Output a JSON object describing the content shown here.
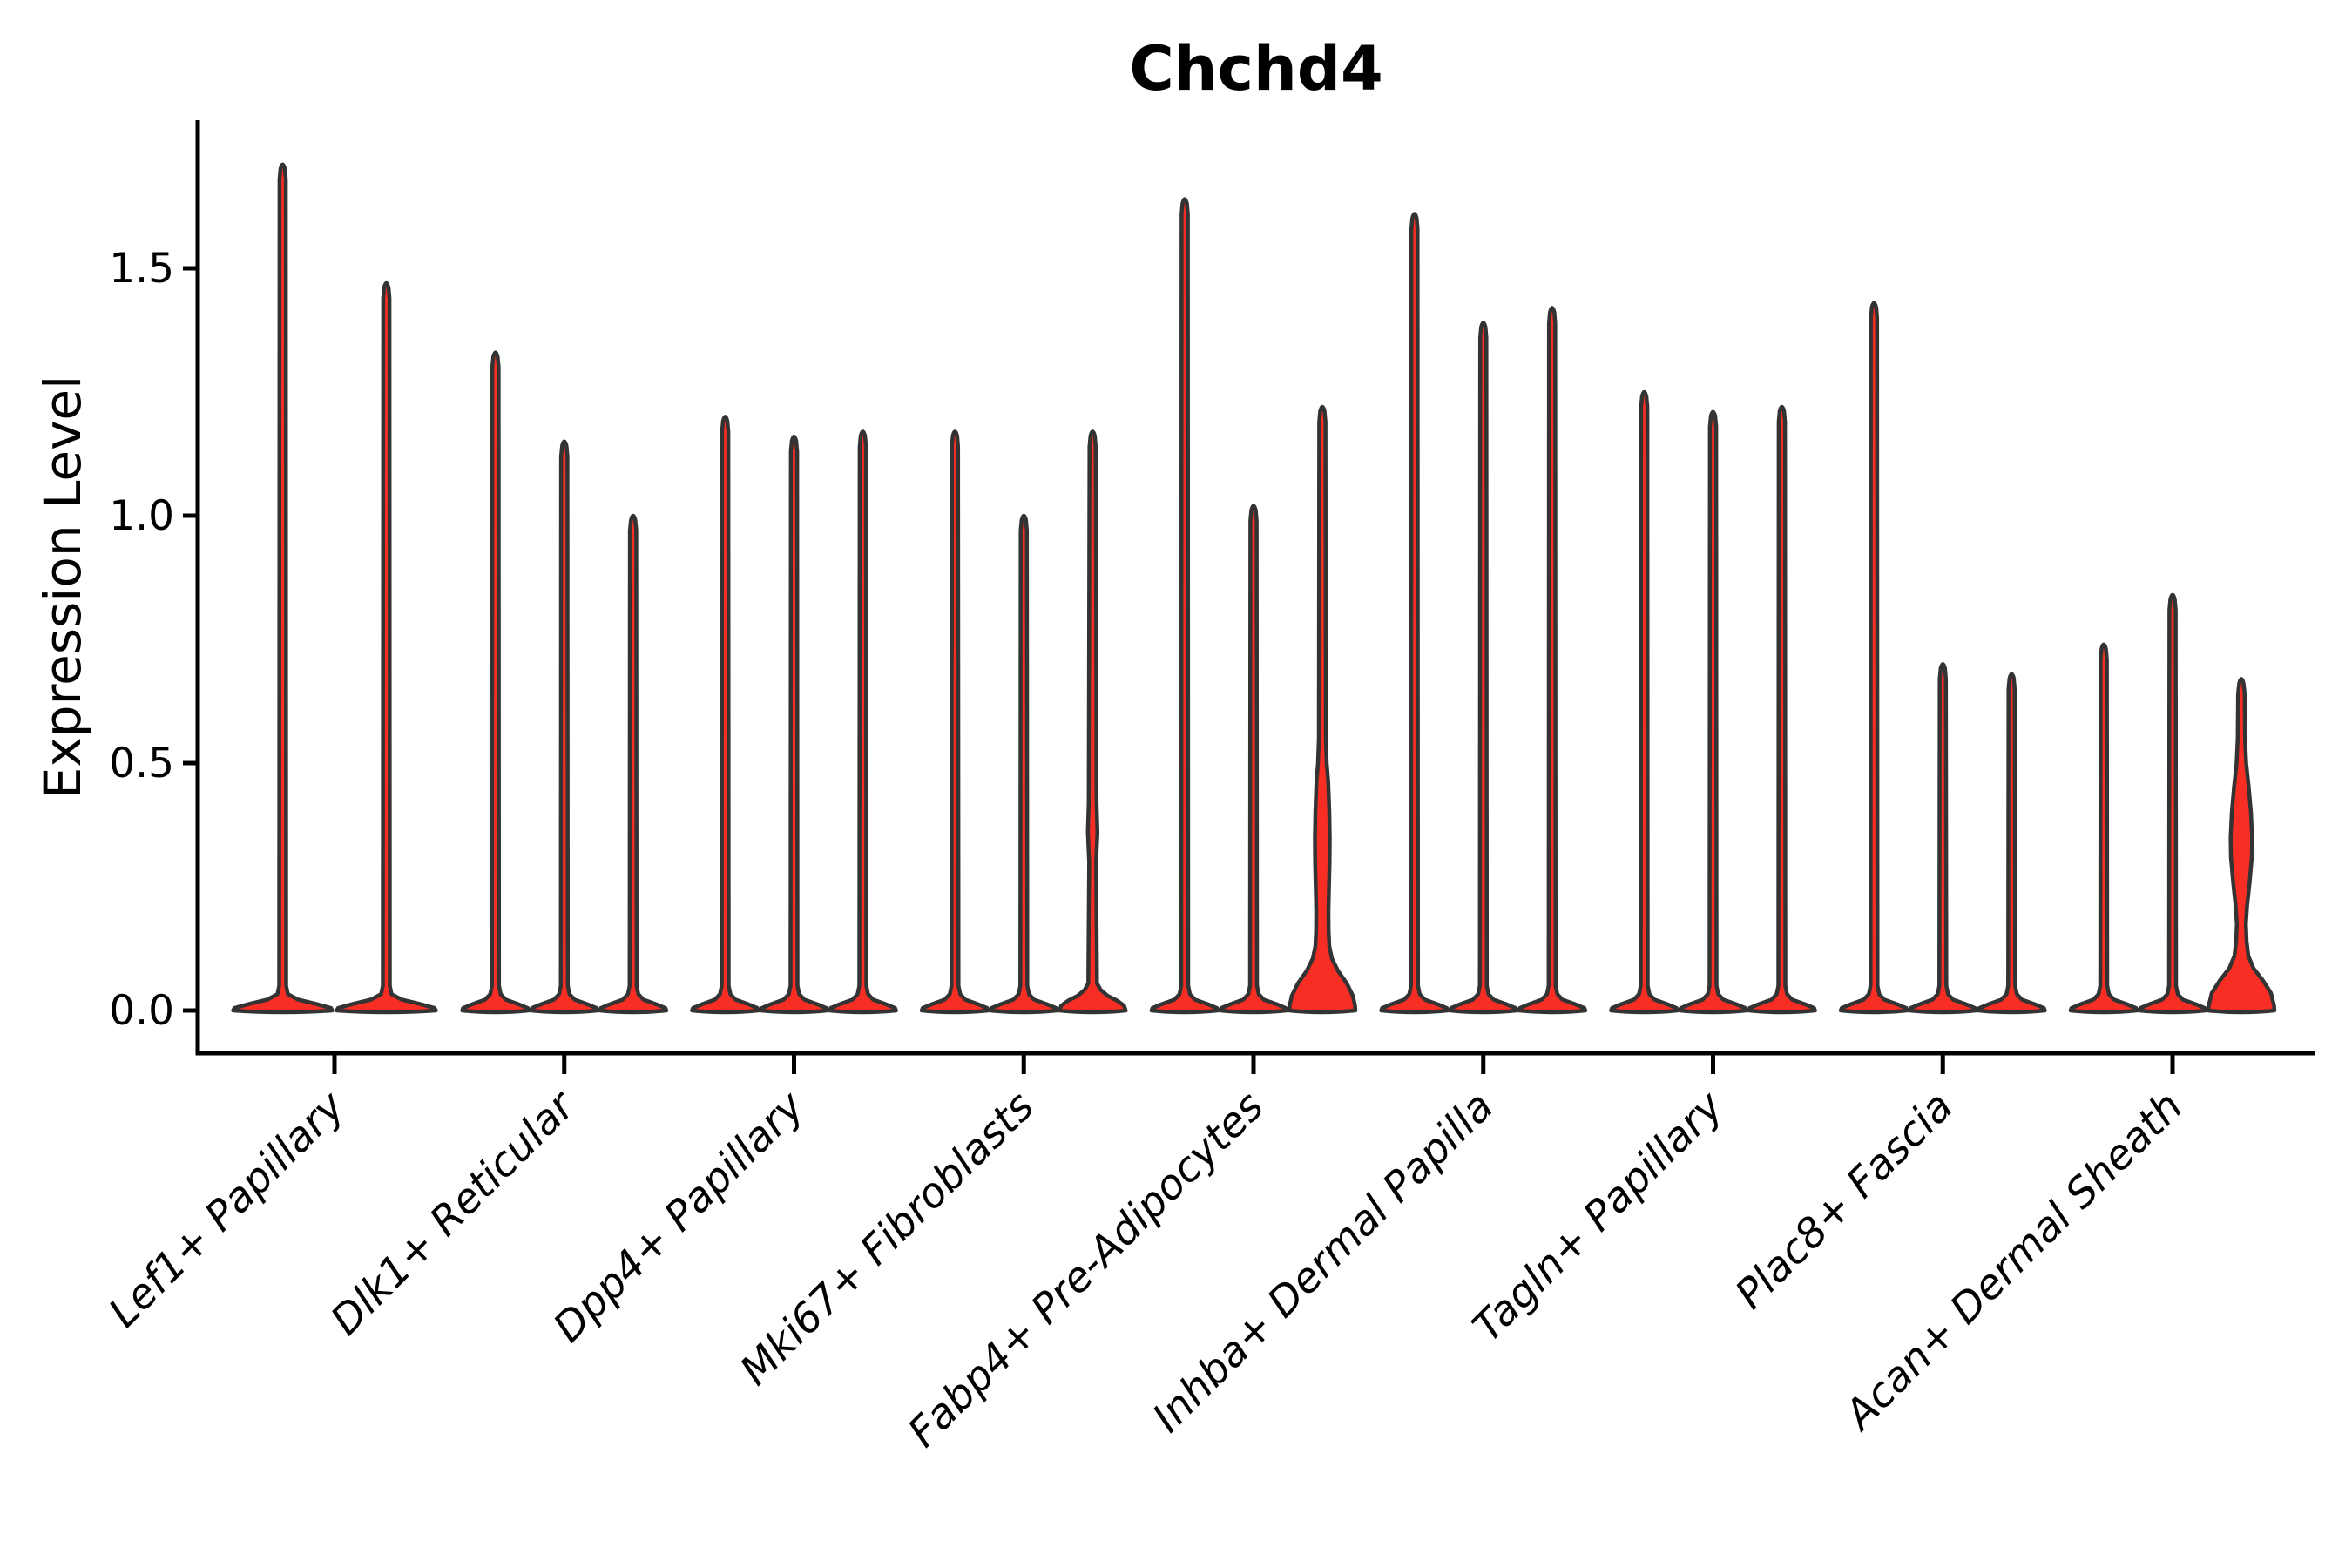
{
  "chart_data": {
    "type": "violin",
    "title": "Chchd4",
    "ylabel": "Expression Level",
    "xlabel": "",
    "yticks": [
      0.0,
      0.5,
      1.0,
      1.5
    ],
    "ylim": [
      -0.09,
      1.8
    ],
    "grid": "off",
    "legend": "none",
    "colors": {
      "violin_fill": "#f82e25",
      "violin_stroke": "#333333",
      "axis": "#000000",
      "background": "#ffffff"
    },
    "categories": [
      "Lef1+ Papillary",
      "Dlk1+ Reticular",
      "Dpp4+ Papillary",
      "Mki67+ Fibroblasts",
      "Fabp4+ Pre-Adipocytes",
      "Inhba+ Dermal Papilla",
      "Tagln+ Papillary",
      "Plac8+ Fascia",
      "Acan+ Dermal Sheath"
    ],
    "violins": [
      {
        "label": "Lef1+ Papillary",
        "maxima": [
          1.71,
          1.47
        ]
      },
      {
        "label": "Dlk1+ Reticular",
        "maxima": [
          1.33,
          1.15,
          1.0
        ]
      },
      {
        "label": "Dpp4+ Papillary",
        "maxima": [
          1.2,
          1.16,
          1.17
        ]
      },
      {
        "label": "Mki67+ Fibroblasts",
        "maxima": [
          1.17,
          1.0,
          1.17
        ],
        "profiles": {
          "2": [
            [
              0,
              38
            ],
            [
              0.01,
              36
            ],
            [
              0.02,
              28
            ],
            [
              0.03,
              17
            ],
            [
              0.042,
              9
            ],
            [
              0.055,
              5
            ],
            [
              0.3,
              4
            ],
            [
              0.36,
              5.5
            ],
            [
              0.42,
              4.5
            ],
            [
              1.14,
              3.6
            ],
            [
              1.17,
              2.5
            ]
          ]
        }
      },
      {
        "label": "Fabp4+ Pre-Adipocytes",
        "maxima": [
          1.64,
          1.02,
          1.22
        ],
        "profiles": {
          "2": [
            [
              0,
              38
            ],
            [
              0.01,
              37.5
            ],
            [
              0.03,
              35
            ],
            [
              0.055,
              28
            ],
            [
              0.08,
              18
            ],
            [
              0.105,
              11
            ],
            [
              0.13,
              8
            ],
            [
              0.16,
              7.2
            ],
            [
              0.2,
              7.0
            ],
            [
              0.25,
              7.6
            ],
            [
              0.3,
              8.3
            ],
            [
              0.35,
              8.5
            ],
            [
              0.4,
              8.0
            ],
            [
              0.46,
              6.8
            ],
            [
              0.5,
              5.0
            ],
            [
              0.55,
              4.0
            ],
            [
              1.19,
              3.6
            ],
            [
              1.22,
              2.5
            ]
          ]
        }
      },
      {
        "label": "Inhba+ Dermal Papilla",
        "maxima": [
          1.61,
          1.39,
          1.42
        ]
      },
      {
        "label": "Tagln+ Papillary",
        "maxima": [
          1.25,
          1.21,
          1.22
        ]
      },
      {
        "label": "Plac8+ Fascia",
        "maxima": [
          1.43,
          0.7,
          0.68
        ]
      },
      {
        "label": "Acan+ Dermal Sheath",
        "maxima": [
          0.74,
          0.84,
          0.67
        ],
        "profiles": {
          "2": [
            [
              0,
              38
            ],
            [
              0.01,
              37.5
            ],
            [
              0.035,
              34
            ],
            [
              0.06,
              25
            ],
            [
              0.085,
              14
            ],
            [
              0.11,
              8
            ],
            [
              0.14,
              6
            ],
            [
              0.175,
              5.2
            ],
            [
              0.21,
              6.5
            ],
            [
              0.26,
              9.5
            ],
            [
              0.31,
              12.0
            ],
            [
              0.35,
              12.3
            ],
            [
              0.4,
              11.0
            ],
            [
              0.45,
              8.5
            ],
            [
              0.5,
              5.5
            ],
            [
              0.55,
              4.2
            ],
            [
              0.64,
              3.8
            ],
            [
              0.67,
              2.5
            ]
          ]
        }
      }
    ]
  }
}
